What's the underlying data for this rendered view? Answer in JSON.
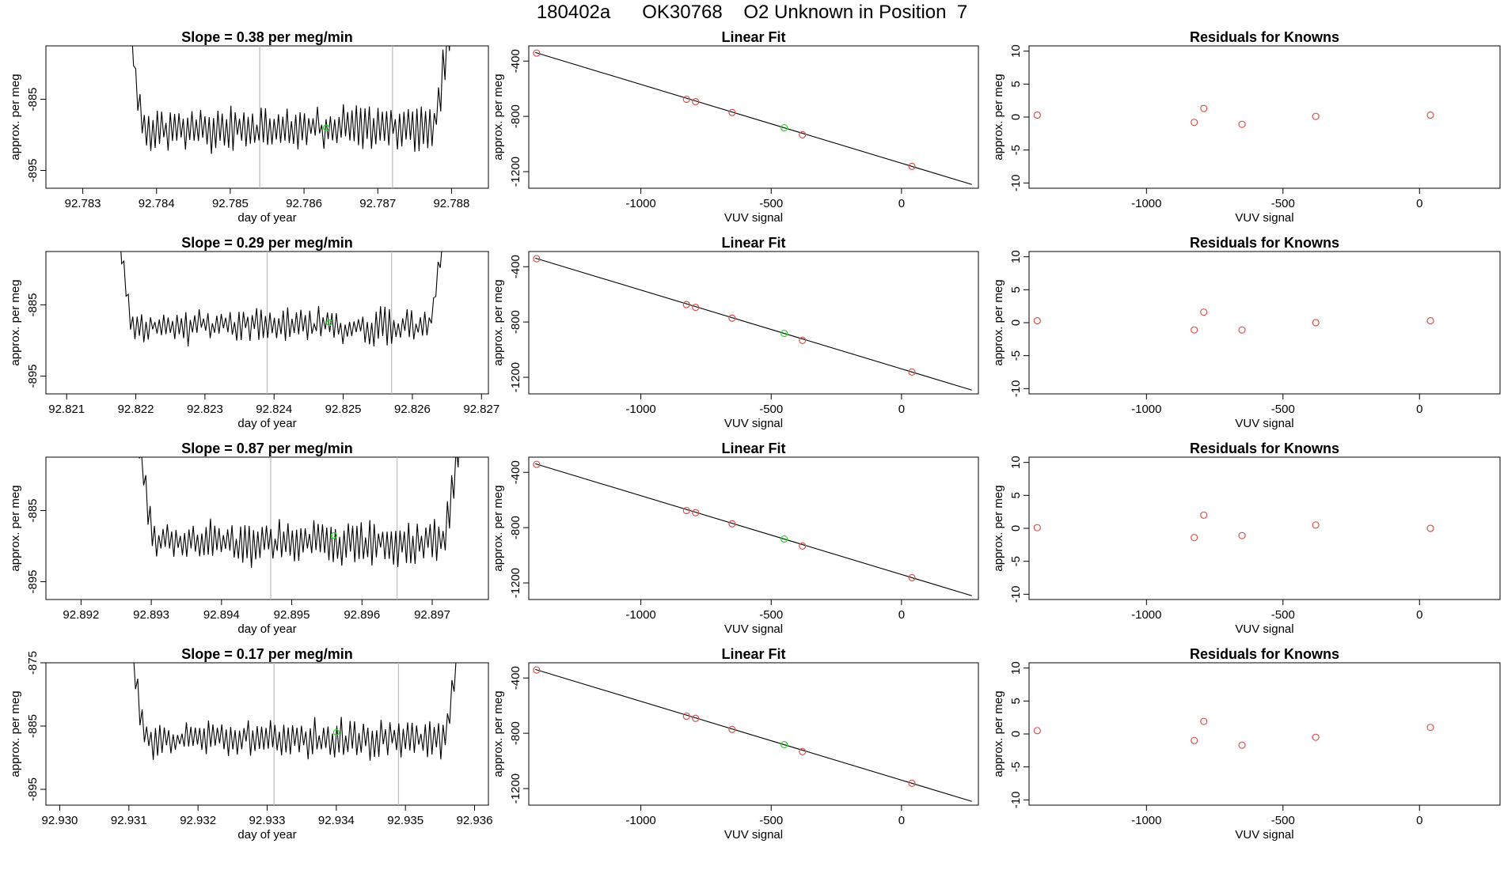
{
  "figure_title": "180402a      OK30768    O2 Unknown in Position  7",
  "colors": {
    "line": "#000000",
    "known": "#d9534f",
    "unknown": "#22dd22",
    "vline": "#bbbbbb",
    "frame": "#000000"
  },
  "chart_data": [
    {
      "type": "line",
      "panel": "time-series",
      "row": 1,
      "title": "Slope =  0.38  per meg/min",
      "xlabel": "day of year",
      "ylabel": "approx. per meg",
      "xlim": [
        92.7825,
        92.7885
      ],
      "ylim": [
        -897.5,
        -877.5
      ],
      "xticks": [
        92.783,
        92.784,
        92.785,
        92.786,
        92.787,
        92.788
      ],
      "xtick_labels": [
        "92.783",
        "92.784",
        "92.785",
        "92.786",
        "92.787",
        "92.788"
      ],
      "yticks": [
        -885,
        -895
      ],
      "ytick_labels": [
        "-885",
        "-895"
      ],
      "x_start": 92.7836,
      "x_end": 92.788,
      "baseline": -889.0,
      "amplitude": 3.0,
      "seed": 11,
      "vlines": [
        92.7854,
        92.7872
      ],
      "unknown_point": {
        "x": 92.7863,
        "y": -889.0
      }
    },
    {
      "type": "scatter",
      "panel": "linear-fit",
      "row": 1,
      "title": "Linear Fit",
      "xlabel": "VUV signal",
      "ylabel": "approx. per meg",
      "xlim": [
        -1430,
        295
      ],
      "ylim": [
        -1320,
        -290
      ],
      "xticks": [
        -1000,
        -500,
        0
      ],
      "xtick_labels": [
        "-1000",
        "-500",
        "0"
      ],
      "yticks": [
        -400,
        -800,
        -1200
      ],
      "ytick_labels": [
        "-400",
        "-800",
        "-1200"
      ],
      "fit_line": {
        "x": [
          -1405,
          270
        ],
        "y": [
          -338,
          -1293
        ]
      },
      "knowns": [
        {
          "x": -1400,
          "y": -342
        },
        {
          "x": -825,
          "y": -676
        },
        {
          "x": -790,
          "y": -694
        },
        {
          "x": -650,
          "y": -772
        },
        {
          "x": -380,
          "y": -933
        },
        {
          "x": 40,
          "y": -1162
        }
      ],
      "unknown": {
        "x": -450,
        "y": -882
      }
    },
    {
      "type": "scatter",
      "panel": "residuals",
      "row": 1,
      "title": "Residuals for Knowns",
      "xlabel": "VUV signal",
      "ylabel": "approx. per meg",
      "xlim": [
        -1430,
        295
      ],
      "ylim": [
        -10.8,
        10.8
      ],
      "xticks": [
        -1000,
        -500,
        0
      ],
      "xtick_labels": [
        "-1000",
        "-500",
        "0"
      ],
      "yticks": [
        10,
        5,
        0,
        -5,
        -10
      ],
      "ytick_labels": [
        "10",
        "5",
        "0",
        "-5",
        "-10"
      ],
      "residuals": [
        {
          "x": -1400,
          "y": 0.3
        },
        {
          "x": -825,
          "y": -0.8
        },
        {
          "x": -790,
          "y": 1.3
        },
        {
          "x": -650,
          "y": -1.1
        },
        {
          "x": -380,
          "y": 0.1
        },
        {
          "x": 40,
          "y": 0.3
        }
      ]
    },
    {
      "type": "line",
      "panel": "time-series",
      "row": 2,
      "title": "Slope =  0.29  per meg/min",
      "xlabel": "day of year",
      "ylabel": "approx. per meg",
      "xlim": [
        92.8207,
        92.8271
      ],
      "ylim": [
        -897.5,
        -877.5
      ],
      "xticks": [
        92.821,
        92.822,
        92.823,
        92.824,
        92.825,
        92.826,
        92.827
      ],
      "xtick_labels": [
        "92.821",
        "92.822",
        "92.823",
        "92.824",
        "92.825",
        "92.826",
        "92.827"
      ],
      "yticks": [
        -885,
        -895
      ],
      "ytick_labels": [
        "-885",
        "-895"
      ],
      "x_start": 92.8217,
      "x_end": 92.8265,
      "baseline": -888.0,
      "amplitude": 2.2,
      "seed": 23,
      "vlines": [
        92.8239,
        92.8257
      ],
      "unknown_point": {
        "x": 92.8248,
        "y": -887.5
      }
    },
    {
      "type": "scatter",
      "panel": "linear-fit",
      "row": 2,
      "title": "Linear Fit",
      "xlabel": "VUV signal",
      "ylabel": "approx. per meg",
      "xlim": [
        -1430,
        295
      ],
      "ylim": [
        -1320,
        -290
      ],
      "xticks": [
        -1000,
        -500,
        0
      ],
      "xtick_labels": [
        "-1000",
        "-500",
        "0"
      ],
      "yticks": [
        -400,
        -800,
        -1200
      ],
      "ytick_labels": [
        "-400",
        "-800",
        "-1200"
      ],
      "fit_line": {
        "x": [
          -1405,
          270
        ],
        "y": [
          -338,
          -1293
        ]
      },
      "knowns": [
        {
          "x": -1400,
          "y": -342
        },
        {
          "x": -825,
          "y": -674
        },
        {
          "x": -790,
          "y": -694
        },
        {
          "x": -650,
          "y": -772
        },
        {
          "x": -380,
          "y": -933
        },
        {
          "x": 40,
          "y": -1162
        }
      ],
      "unknown": {
        "x": -450,
        "y": -882
      }
    },
    {
      "type": "scatter",
      "panel": "residuals",
      "row": 2,
      "title": "Residuals for Knowns",
      "xlabel": "VUV signal",
      "ylabel": "approx. per meg",
      "xlim": [
        -1430,
        295
      ],
      "ylim": [
        -10.8,
        10.8
      ],
      "xticks": [
        -1000,
        -500,
        0
      ],
      "xtick_labels": [
        "-1000",
        "-500",
        "0"
      ],
      "yticks": [
        10,
        5,
        0,
        -5,
        -10
      ],
      "ytick_labels": [
        "10",
        "5",
        "0",
        "-5",
        "-10"
      ],
      "residuals": [
        {
          "x": -1400,
          "y": 0.3
        },
        {
          "x": -825,
          "y": -1.1
        },
        {
          "x": -790,
          "y": 1.6
        },
        {
          "x": -650,
          "y": -1.1
        },
        {
          "x": -380,
          "y": 0.0
        },
        {
          "x": 40,
          "y": 0.3
        }
      ]
    },
    {
      "type": "line",
      "panel": "time-series",
      "row": 3,
      "title": "Slope =  0.87  per meg/min",
      "xlabel": "day of year",
      "ylabel": "approx. per meg",
      "xlim": [
        92.8915,
        92.8978
      ],
      "ylim": [
        -897.5,
        -877.5
      ],
      "xticks": [
        92.892,
        92.893,
        92.894,
        92.895,
        92.896,
        92.897
      ],
      "xtick_labels": [
        "92.892",
        "92.893",
        "92.894",
        "92.895",
        "92.896",
        "92.897"
      ],
      "yticks": [
        -885,
        -895
      ],
      "ytick_labels": [
        "-885",
        "-895"
      ],
      "x_start": 92.8928,
      "x_end": 92.8974,
      "baseline": -889.5,
      "amplitude": 3.0,
      "seed": 37,
      "vlines": [
        92.8947,
        92.8965
      ],
      "unknown_point": {
        "x": 92.8956,
        "y": -888.5
      }
    },
    {
      "type": "scatter",
      "panel": "linear-fit",
      "row": 3,
      "title": "Linear Fit",
      "xlabel": "VUV signal",
      "ylabel": "approx. per meg",
      "xlim": [
        -1430,
        295
      ],
      "ylim": [
        -1320,
        -290
      ],
      "xticks": [
        -1000,
        -500,
        0
      ],
      "xtick_labels": [
        "-1000",
        "-500",
        "0"
      ],
      "yticks": [
        -400,
        -800,
        -1200
      ],
      "ytick_labels": [
        "-400",
        "-800",
        "-1200"
      ],
      "fit_line": {
        "x": [
          -1405,
          270
        ],
        "y": [
          -338,
          -1293
        ]
      },
      "knowns": [
        {
          "x": -1400,
          "y": -342
        },
        {
          "x": -825,
          "y": -676
        },
        {
          "x": -790,
          "y": -692
        },
        {
          "x": -650,
          "y": -772
        },
        {
          "x": -380,
          "y": -933
        },
        {
          "x": 40,
          "y": -1162
        }
      ],
      "unknown": {
        "x": -450,
        "y": -882
      }
    },
    {
      "type": "scatter",
      "panel": "residuals",
      "row": 3,
      "title": "Residuals for Knowns",
      "xlabel": "VUV signal",
      "ylabel": "approx. per meg",
      "xlim": [
        -1430,
        295
      ],
      "ylim": [
        -10.8,
        10.8
      ],
      "xticks": [
        -1000,
        -500,
        0
      ],
      "xtick_labels": [
        "-1000",
        "-500",
        "0"
      ],
      "yticks": [
        10,
        5,
        0,
        -5,
        -10
      ],
      "ytick_labels": [
        "10",
        "5",
        "0",
        "-5",
        "-10"
      ],
      "residuals": [
        {
          "x": -1400,
          "y": 0.1
        },
        {
          "x": -825,
          "y": -1.4
        },
        {
          "x": -790,
          "y": 2.0
        },
        {
          "x": -650,
          "y": -1.1
        },
        {
          "x": -380,
          "y": 0.5
        },
        {
          "x": 40,
          "y": 0.0
        }
      ]
    },
    {
      "type": "line",
      "panel": "time-series",
      "row": 4,
      "title": "Slope =  0.17  per meg/min",
      "xlabel": "day of year",
      "ylabel": "approx. per meg",
      "xlim": [
        92.9298,
        92.9362
      ],
      "ylim": [
        -897.5,
        -875.0
      ],
      "xticks": [
        92.93,
        92.931,
        92.932,
        92.933,
        92.934,
        92.935,
        92.936
      ],
      "xtick_labels": [
        "92.930",
        "92.931",
        "92.932",
        "92.933",
        "92.934",
        "92.935",
        "92.936"
      ],
      "yticks": [
        -875,
        -885,
        -895
      ],
      "ytick_labels": [
        "-875",
        "-885",
        "-895"
      ],
      "x_start": 92.931,
      "x_end": 92.9358,
      "baseline": -887.0,
      "amplitude": 2.8,
      "seed": 53,
      "vlines": [
        92.9331,
        92.9349
      ],
      "unknown_point": {
        "x": 92.934,
        "y": -886.0
      }
    },
    {
      "type": "scatter",
      "panel": "linear-fit",
      "row": 4,
      "title": "Linear Fit",
      "xlabel": "VUV signal",
      "ylabel": "approx. per meg",
      "xlim": [
        -1430,
        295
      ],
      "ylim": [
        -1320,
        -290
      ],
      "xticks": [
        -1000,
        -500,
        0
      ],
      "xtick_labels": [
        "-1000",
        "-500",
        "0"
      ],
      "yticks": [
        -400,
        -800,
        -1200
      ],
      "ytick_labels": [
        "-400",
        "-800",
        "-1200"
      ],
      "fit_line": {
        "x": [
          -1405,
          270
        ],
        "y": [
          -338,
          -1293
        ]
      },
      "knowns": [
        {
          "x": -1400,
          "y": -342
        },
        {
          "x": -825,
          "y": -676
        },
        {
          "x": -790,
          "y": -692
        },
        {
          "x": -650,
          "y": -772
        },
        {
          "x": -380,
          "y": -933
        },
        {
          "x": 40,
          "y": -1162
        }
      ],
      "unknown": {
        "x": -450,
        "y": -882
      }
    },
    {
      "type": "scatter",
      "panel": "residuals",
      "row": 4,
      "title": "Residuals for Knowns",
      "xlabel": "VUV signal",
      "ylabel": "approx. per meg",
      "xlim": [
        -1430,
        295
      ],
      "ylim": [
        -10.8,
        10.8
      ],
      "xticks": [
        -1000,
        -500,
        0
      ],
      "xtick_labels": [
        "-1000",
        "-500",
        "0"
      ],
      "yticks": [
        10,
        5,
        0,
        -5,
        -10
      ],
      "ytick_labels": [
        "10",
        "5",
        "0",
        "-5",
        "-10"
      ],
      "residuals": [
        {
          "x": -1400,
          "y": 0.5
        },
        {
          "x": -825,
          "y": -1.0
        },
        {
          "x": -790,
          "y": 1.9
        },
        {
          "x": -650,
          "y": -1.7
        },
        {
          "x": -380,
          "y": -0.5
        },
        {
          "x": 40,
          "y": 1.0
        }
      ]
    }
  ]
}
